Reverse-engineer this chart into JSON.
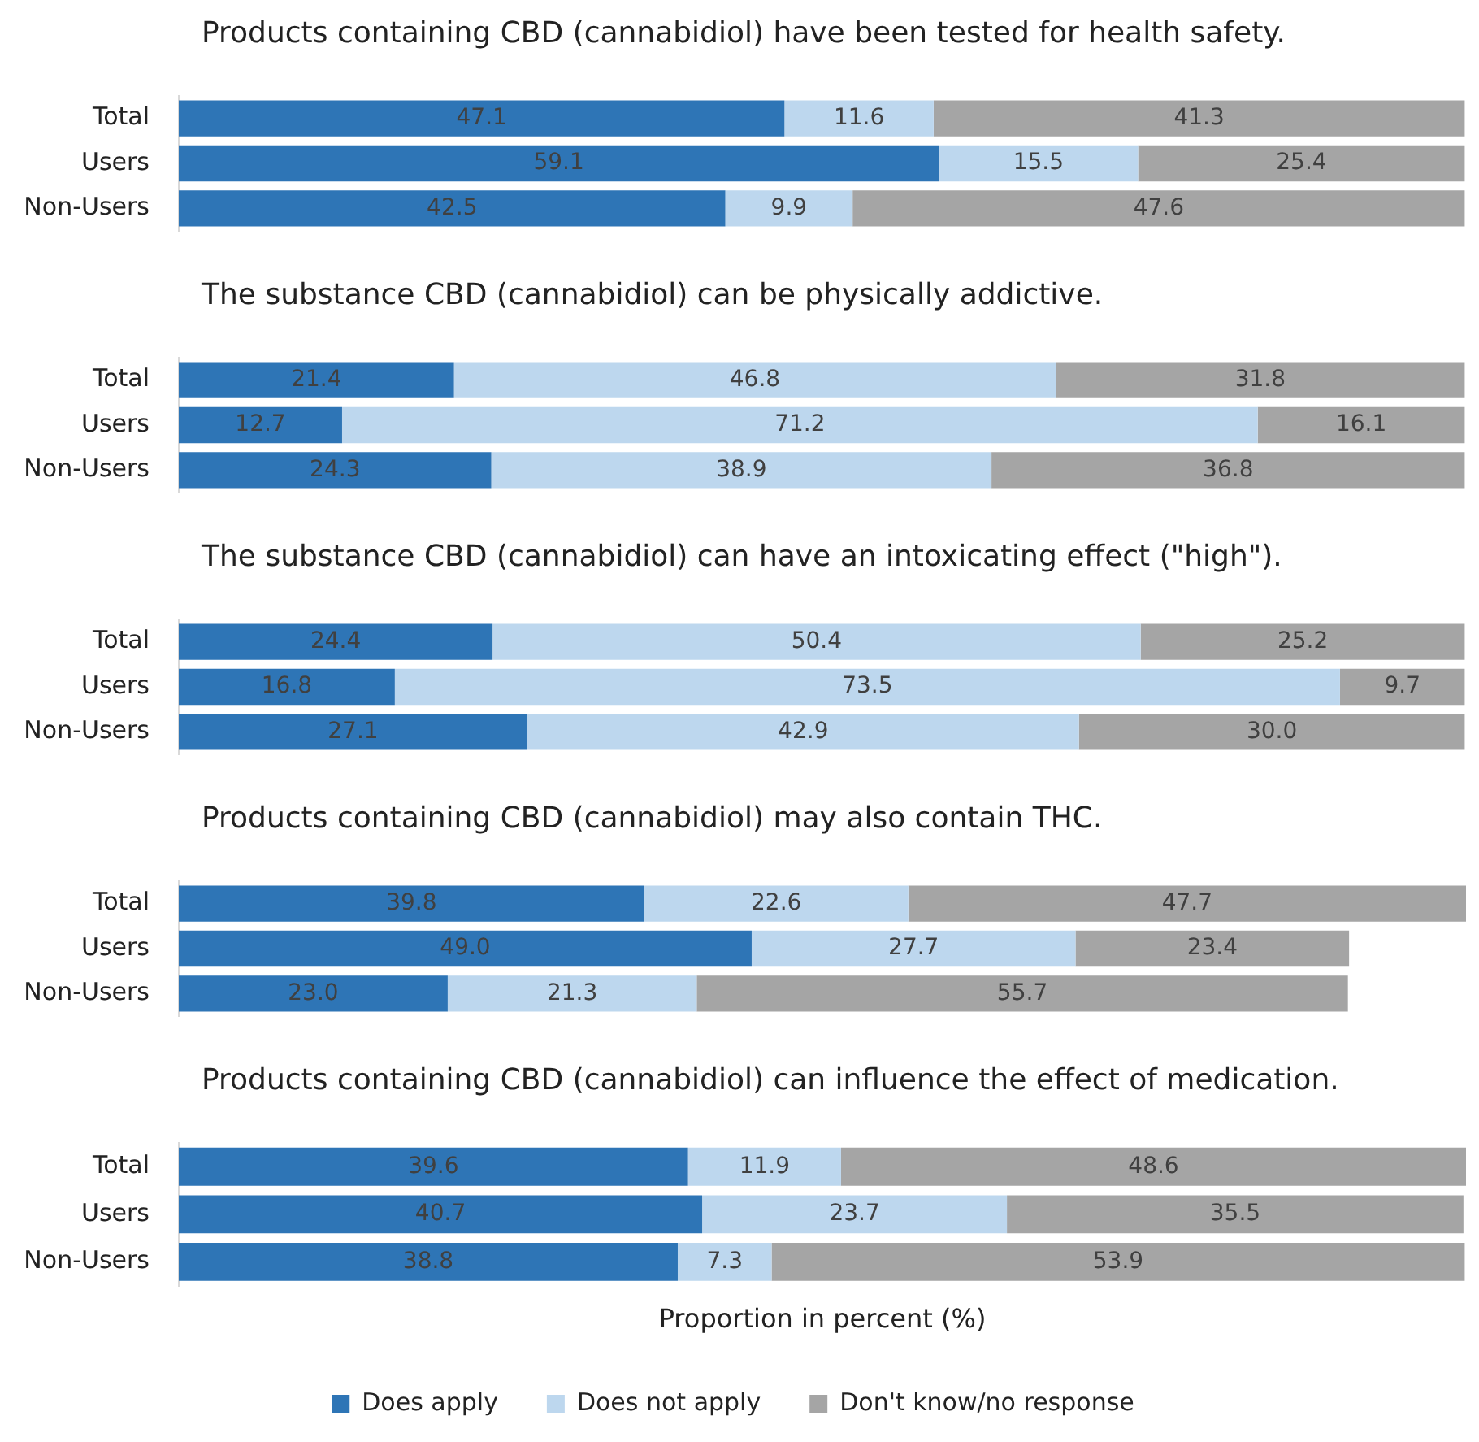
{
  "chart_data": [
    {
      "type": "bar",
      "orientation": "horizontal",
      "stacked": true,
      "title": "Products containing CBD (cannabidiol) have been tested for health safety.",
      "categories": [
        "Total",
        "Users",
        "Non-Users"
      ],
      "xlim": [
        0,
        100.1
      ],
      "tick_labels": "y",
      "grid": false,
      "series": [
        {
          "color": "#2e75b6",
          "values": [
            47.1,
            59.1,
            42.5
          ],
          "value_labels": [
            "47.1",
            "59.1",
            "42.5"
          ]
        },
        {
          "color": "#bdd7ee",
          "values": [
            11.6,
            15.5,
            9.9
          ],
          "value_labels": [
            "11.6",
            "15.5",
            "9.9"
          ]
        },
        {
          "color": "#a5a5a5",
          "values": [
            41.3,
            25.4,
            47.6
          ],
          "value_labels": [
            "41.3",
            "25.4",
            "47.6"
          ]
        }
      ]
    },
    {
      "type": "bar",
      "orientation": "horizontal",
      "stacked": true,
      "title": "The substance CBD (cannabidiol) can be physically addictive.",
      "categories": [
        "Total",
        "Users",
        "Non-Users"
      ],
      "xlim": [
        0,
        100.1
      ],
      "tick_labels": "y",
      "grid": false,
      "series": [
        {
          "color": "#2e75b6",
          "values": [
            21.4,
            12.7,
            24.3
          ],
          "value_labels": [
            "21.4",
            "12.7",
            "24.3"
          ]
        },
        {
          "color": "#bdd7ee",
          "values": [
            46.8,
            71.2,
            38.9
          ],
          "value_labels": [
            "46.8",
            "71.2",
            "38.9"
          ]
        },
        {
          "color": "#a5a5a5",
          "values": [
            31.8,
            16.1,
            36.8
          ],
          "value_labels": [
            "31.8",
            "16.1",
            "36.8"
          ]
        }
      ]
    },
    {
      "type": "bar",
      "orientation": "horizontal",
      "stacked": true,
      "title": "The substance CBD (cannabidiol) can have an intoxicating effect (\"high\").",
      "categories": [
        "Total",
        "Users",
        "Non-Users"
      ],
      "xlim": [
        0,
        100.1
      ],
      "tick_labels": "y",
      "grid": false,
      "series": [
        {
          "color": "#2e75b6",
          "values": [
            24.4,
            16.8,
            27.1
          ],
          "value_labels": [
            "24.4",
            "16.8",
            "27.1"
          ]
        },
        {
          "color": "#bdd7ee",
          "values": [
            50.4,
            73.5,
            42.9
          ],
          "value_labels": [
            "50.4",
            "73.5",
            "42.9"
          ]
        },
        {
          "color": "#a5a5a5",
          "values": [
            25.2,
            9.7,
            30.0
          ],
          "value_labels": [
            "25.2",
            "9.7",
            "30.0"
          ]
        }
      ]
    },
    {
      "type": "bar",
      "orientation": "horizontal",
      "stacked": true,
      "title": "Products containing CBD (cannabidiol) may also contain THC.",
      "categories": [
        "Total",
        "Users",
        "Non-Users"
      ],
      "xlim": [
        0,
        110.1
      ],
      "tick_labels": "y",
      "grid": false,
      "series": [
        {
          "color": "#2e75b6",
          "values": [
            39.8,
            49.0,
            23.0
          ],
          "value_labels": [
            "39.8",
            "49.0",
            "23.0"
          ]
        },
        {
          "color": "#bdd7ee",
          "values": [
            22.6,
            27.7,
            21.3
          ],
          "value_labels": [
            "22.6",
            "27.7",
            "21.3"
          ]
        },
        {
          "color": "#a5a5a5",
          "values": [
            47.7,
            23.4,
            55.7
          ],
          "value_labels": [
            "47.7",
            "23.4",
            "55.7"
          ]
        }
      ]
    },
    {
      "type": "bar",
      "orientation": "horizontal",
      "stacked": true,
      "title": "Products containing CBD (cannabidiol) can influence the effect of medication.",
      "categories": [
        "Total",
        "Users",
        "Non-Users"
      ],
      "xlim": [
        0,
        100.1
      ],
      "tick_labels": "y",
      "grid": false,
      "xlabel": "Proportion in percent (%)",
      "legend": "bottom",
      "series": [
        {
          "name": "Does apply",
          "color": "#2e75b6",
          "values": [
            39.6,
            40.7,
            38.8
          ],
          "value_labels": [
            "39.6",
            "40.7",
            "38.8"
          ]
        },
        {
          "name": "Does not apply",
          "color": "#bdd7ee",
          "values": [
            11.9,
            23.7,
            7.3
          ],
          "value_labels": [
            "11.9",
            "23.7",
            "7.3"
          ]
        },
        {
          "name": "Don't know/no response",
          "color": "#a5a5a5",
          "values": [
            48.6,
            35.5,
            53.9
          ],
          "value_labels": [
            "48.6",
            "35.5",
            "53.9"
          ]
        }
      ]
    }
  ]
}
